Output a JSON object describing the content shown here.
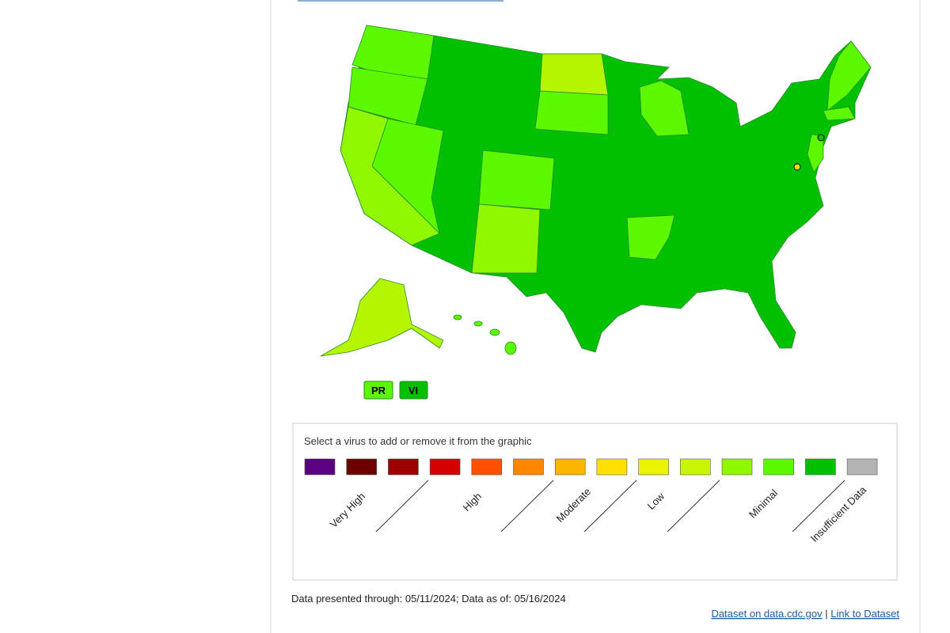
{
  "territories": [
    "PR",
    "VI"
  ],
  "legend": {
    "prompt": "Select a virus to add or remove it from the graphic",
    "colors": [
      "#5a0080",
      "#6e0000",
      "#9c0000",
      "#d40000",
      "#ff5000",
      "#ff8800",
      "#ffb400",
      "#ffe000",
      "#ebf400",
      "#c8f500",
      "#90f700",
      "#5cf800",
      "#00c000",
      "#b4b4b4"
    ],
    "labels": [
      "Very High",
      "High",
      "Moderate",
      "Low",
      "Minimal",
      "Insufficient Data"
    ]
  },
  "footer": {
    "note": "Data presented through: 05/11/2024; Data as of: 05/16/2024",
    "links": [
      "Dataset on data.cdc.gov",
      "|",
      "Link to Dataset"
    ]
  }
}
